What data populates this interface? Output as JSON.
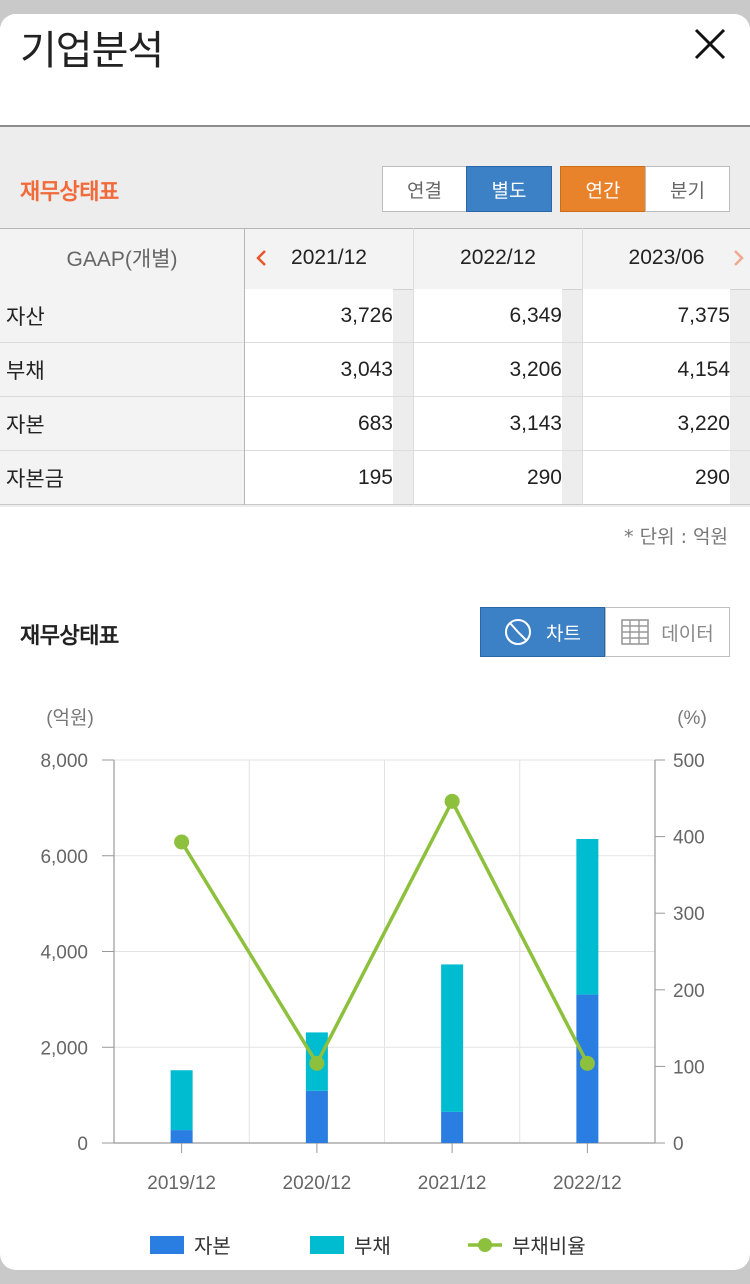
{
  "header": {
    "title": "기업분석"
  },
  "financial_section": {
    "title": "재무상태표",
    "title_color": "#f26a3a",
    "toggle_consolidation": [
      {
        "label": "연결",
        "selected": false
      },
      {
        "label": "별도",
        "selected": true
      }
    ],
    "toggle_period": [
      {
        "label": "연간",
        "selected": true
      },
      {
        "label": "분기",
        "selected": false
      }
    ]
  },
  "table": {
    "header_label": "GAAP(개별)",
    "periods": [
      "2021/12",
      "2022/12",
      "2023/06"
    ],
    "rows": [
      {
        "label": "자산",
        "values": [
          "3,726",
          "6,349",
          "7,375"
        ]
      },
      {
        "label": "부채",
        "values": [
          "3,043",
          "3,206",
          "4,154"
        ]
      },
      {
        "label": "자본",
        "values": [
          "683",
          "3,143",
          "3,220"
        ]
      },
      {
        "label": "자본금",
        "values": [
          "195",
          "290",
          "290"
        ]
      }
    ],
    "unit_note": "* 단위 : 억원"
  },
  "chart_section": {
    "title": "재무상태표",
    "view_tabs": [
      {
        "label": "차트",
        "icon": "pie-chart-icon",
        "selected": true
      },
      {
        "label": "데이터",
        "icon": "grid-table-icon",
        "selected": false
      }
    ]
  },
  "chart_data": {
    "type": "bar",
    "stacked": true,
    "categories": [
      "2019/12",
      "2020/12",
      "2021/12",
      "2022/12"
    ],
    "series": [
      {
        "name": "자본",
        "type": "bar",
        "axis": "left",
        "color": "#2a7de1",
        "values": [
          270,
          1090,
          650,
          3100
        ]
      },
      {
        "name": "부채",
        "type": "bar",
        "axis": "left",
        "color": "#00bcd0",
        "values": [
          1250,
          1220,
          3080,
          3250
        ]
      },
      {
        "name": "부채비율",
        "type": "line",
        "axis": "right",
        "color": "#8dc03c",
        "values": [
          393,
          104,
          446,
          104
        ]
      }
    ],
    "ylabel": "(억원)",
    "y2label": "(%)",
    "ylim": [
      0,
      8000
    ],
    "y2lim": [
      0,
      500
    ],
    "yticks": [
      "0",
      "2,000",
      "4,000",
      "6,000",
      "8,000"
    ],
    "y2ticks": [
      "0",
      "100",
      "200",
      "300",
      "400",
      "500"
    ],
    "grid": true,
    "legend": "bottom"
  }
}
